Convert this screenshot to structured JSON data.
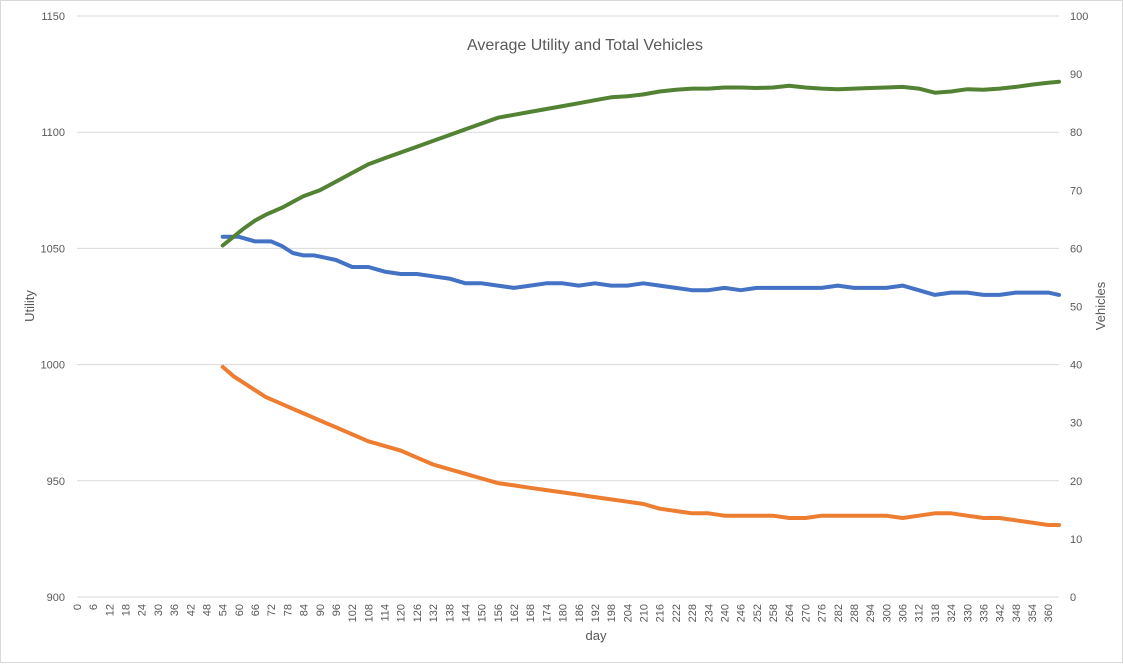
{
  "chart_data": {
    "type": "line",
    "title": "Average Utility and Total Vehicles",
    "xlabel": "day",
    "ylabel": "Utility",
    "y2label": "Vehicles",
    "xlim": [
      0,
      364
    ],
    "ylim": [
      900,
      1150
    ],
    "y2lim": [
      0,
      100
    ],
    "x_tick_labels": [
      "0",
      "6",
      "12",
      "18",
      "24",
      "30",
      "36",
      "42",
      "48",
      "54",
      "60",
      "66",
      "72",
      "78",
      "84",
      "90",
      "96",
      "102",
      "108",
      "114",
      "120",
      "126",
      "132",
      "138",
      "144",
      "150",
      "156",
      "162",
      "168",
      "174",
      "180",
      "186",
      "192",
      "198",
      "204",
      "210",
      "216",
      "222",
      "228",
      "234",
      "240",
      "246",
      "252",
      "258",
      "264",
      "270",
      "276",
      "282",
      "288",
      "294",
      "300",
      "306",
      "312",
      "318",
      "324",
      "330",
      "336",
      "342",
      "348",
      "354",
      "360"
    ],
    "y_tick_labels": [
      "900",
      "950",
      "1000",
      "1050",
      "1100",
      "1150"
    ],
    "y2_tick_labels": [
      "0",
      "10",
      "20",
      "30",
      "40",
      "50",
      "60",
      "70",
      "80",
      "90",
      "100"
    ],
    "grid": true,
    "legend": "none",
    "series": [
      {
        "axis": "left",
        "color": "#4472c4",
        "points": [
          [
            54,
            1055
          ],
          [
            60,
            1055
          ],
          [
            66,
            1053
          ],
          [
            72,
            1053
          ],
          [
            76,
            1051
          ],
          [
            80,
            1048
          ],
          [
            84,
            1047
          ],
          [
            88,
            1047
          ],
          [
            92,
            1046
          ],
          [
            96,
            1045
          ],
          [
            102,
            1042
          ],
          [
            108,
            1042
          ],
          [
            114,
            1040
          ],
          [
            120,
            1039
          ],
          [
            126,
            1039
          ],
          [
            132,
            1038
          ],
          [
            138,
            1037
          ],
          [
            144,
            1035
          ],
          [
            150,
            1035
          ],
          [
            156,
            1034
          ],
          [
            162,
            1033
          ],
          [
            168,
            1034
          ],
          [
            174,
            1035
          ],
          [
            180,
            1035
          ],
          [
            186,
            1034
          ],
          [
            192,
            1035
          ],
          [
            198,
            1034
          ],
          [
            204,
            1034
          ],
          [
            210,
            1035
          ],
          [
            216,
            1034
          ],
          [
            222,
            1033
          ],
          [
            228,
            1032
          ],
          [
            234,
            1032
          ],
          [
            240,
            1033
          ],
          [
            246,
            1032
          ],
          [
            252,
            1033
          ],
          [
            258,
            1033
          ],
          [
            264,
            1033
          ],
          [
            270,
            1033
          ],
          [
            276,
            1033
          ],
          [
            282,
            1034
          ],
          [
            288,
            1033
          ],
          [
            294,
            1033
          ],
          [
            300,
            1033
          ],
          [
            306,
            1034
          ],
          [
            312,
            1032
          ],
          [
            318,
            1030
          ],
          [
            324,
            1031
          ],
          [
            330,
            1031
          ],
          [
            336,
            1030
          ],
          [
            342,
            1030
          ],
          [
            348,
            1031
          ],
          [
            354,
            1031
          ],
          [
            360,
            1031
          ],
          [
            364,
            1030
          ]
        ]
      },
      {
        "axis": "left",
        "color": "#ed7d31",
        "points": [
          [
            54,
            999
          ],
          [
            58,
            995
          ],
          [
            62,
            992
          ],
          [
            66,
            989
          ],
          [
            70,
            986
          ],
          [
            76,
            983
          ],
          [
            80,
            981
          ],
          [
            84,
            979
          ],
          [
            90,
            976
          ],
          [
            96,
            973
          ],
          [
            102,
            970
          ],
          [
            108,
            967
          ],
          [
            114,
            965
          ],
          [
            120,
            963
          ],
          [
            126,
            960
          ],
          [
            132,
            957
          ],
          [
            138,
            955
          ],
          [
            144,
            953
          ],
          [
            150,
            951
          ],
          [
            156,
            949
          ],
          [
            162,
            948
          ],
          [
            168,
            947
          ],
          [
            174,
            946
          ],
          [
            180,
            945
          ],
          [
            186,
            944
          ],
          [
            192,
            943
          ],
          [
            198,
            942
          ],
          [
            204,
            941
          ],
          [
            210,
            940
          ],
          [
            216,
            938
          ],
          [
            222,
            937
          ],
          [
            228,
            936
          ],
          [
            234,
            936
          ],
          [
            240,
            935
          ],
          [
            246,
            935
          ],
          [
            252,
            935
          ],
          [
            258,
            935
          ],
          [
            264,
            934
          ],
          [
            270,
            934
          ],
          [
            276,
            935
          ],
          [
            282,
            935
          ],
          [
            288,
            935
          ],
          [
            294,
            935
          ],
          [
            300,
            935
          ],
          [
            306,
            934
          ],
          [
            312,
            935
          ],
          [
            318,
            936
          ],
          [
            324,
            936
          ],
          [
            330,
            935
          ],
          [
            336,
            934
          ],
          [
            342,
            934
          ],
          [
            348,
            933
          ],
          [
            354,
            932
          ],
          [
            360,
            931
          ],
          [
            364,
            931
          ]
        ]
      },
      {
        "axis": "right",
        "color": "#548235",
        "points": [
          [
            54,
            60.5
          ],
          [
            58,
            62
          ],
          [
            62,
            63.5
          ],
          [
            66,
            64.8
          ],
          [
            70,
            65.8
          ],
          [
            76,
            67
          ],
          [
            80,
            68
          ],
          [
            84,
            69
          ],
          [
            90,
            70
          ],
          [
            96,
            71.5
          ],
          [
            102,
            73
          ],
          [
            108,
            74.5
          ],
          [
            114,
            75.5
          ],
          [
            120,
            76.5
          ],
          [
            126,
            77.5
          ],
          [
            132,
            78.5
          ],
          [
            138,
            79.5
          ],
          [
            144,
            80.5
          ],
          [
            150,
            81.5
          ],
          [
            156,
            82.5
          ],
          [
            162,
            83
          ],
          [
            168,
            83.5
          ],
          [
            174,
            84
          ],
          [
            180,
            84.5
          ],
          [
            186,
            85
          ],
          [
            192,
            85.5
          ],
          [
            198,
            86
          ],
          [
            204,
            86.2
          ],
          [
            210,
            86.5
          ],
          [
            216,
            87
          ],
          [
            222,
            87.3
          ],
          [
            228,
            87.5
          ],
          [
            234,
            87.5
          ],
          [
            240,
            87.7
          ],
          [
            246,
            87.7
          ],
          [
            252,
            87.6
          ],
          [
            258,
            87.7
          ],
          [
            264,
            88
          ],
          [
            270,
            87.7
          ],
          [
            276,
            87.5
          ],
          [
            282,
            87.4
          ],
          [
            288,
            87.5
          ],
          [
            294,
            87.6
          ],
          [
            300,
            87.7
          ],
          [
            306,
            87.8
          ],
          [
            312,
            87.5
          ],
          [
            318,
            86.8
          ],
          [
            324,
            87
          ],
          [
            330,
            87.4
          ],
          [
            336,
            87.3
          ],
          [
            342,
            87.5
          ],
          [
            348,
            87.8
          ],
          [
            354,
            88.2
          ],
          [
            360,
            88.5
          ],
          [
            364,
            88.7
          ]
        ]
      }
    ]
  }
}
